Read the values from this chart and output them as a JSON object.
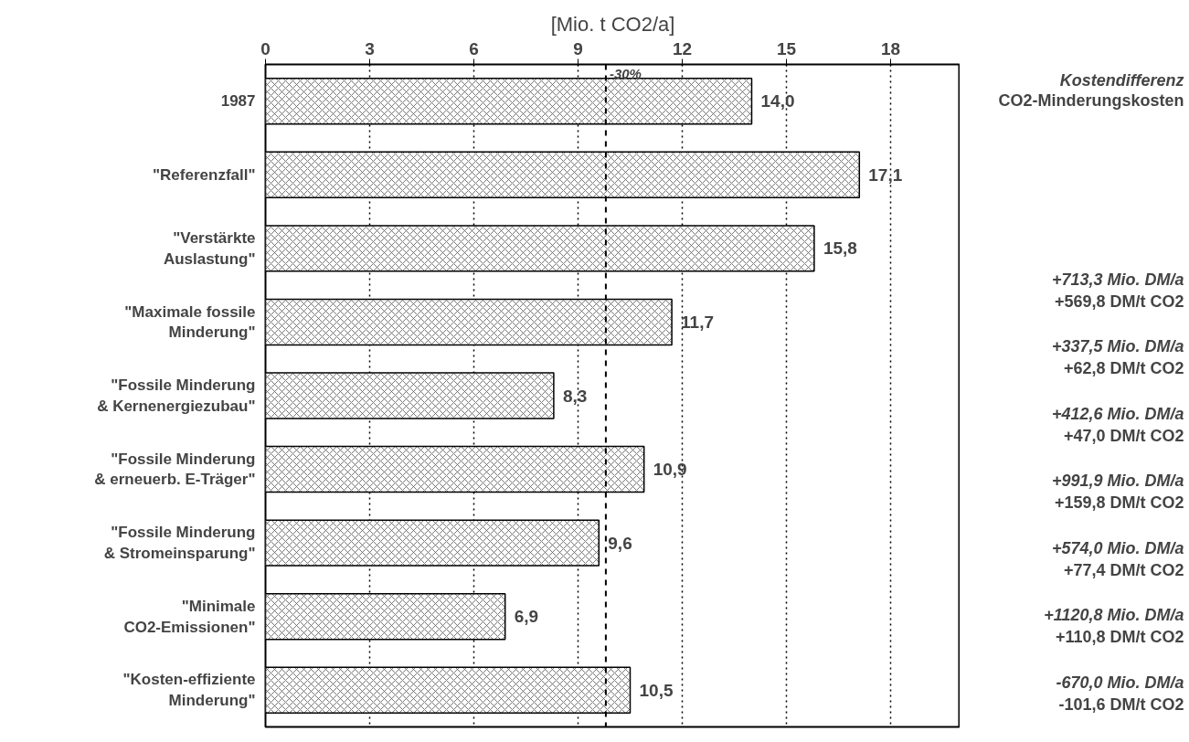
{
  "chart_data": {
    "type": "bar",
    "orientation": "horizontal",
    "xlabel": "[Mio. t CO2/a]",
    "categories": [
      "1987",
      "\"Referenzfall\"",
      "\"Verstärkte\nAuslastung\"",
      "\"Maximale fossile\nMinderung\"",
      "\"Fossile Minderung\n& Kernenergiezubau\"",
      "\"Fossile Minderung\n& erneuerb. E-Träger\"",
      "\"Fossile Minderung\n& Stromeinsparung\"",
      "\"Minimale\nCO2-Emissionen\"",
      "\"Kosten-effiziente\nMinderung\""
    ],
    "values": [
      14.0,
      17.1,
      15.8,
      11.7,
      8.3,
      10.9,
      9.6,
      6.9,
      10.5
    ],
    "value_labels": [
      "14,0",
      "17,1",
      "15,8",
      "11,7",
      "8,3",
      "10,9",
      "9,6",
      "6,9",
      "10,5"
    ],
    "color": "#ffffff",
    "xlim": [
      0,
      20
    ],
    "xticks": [
      0,
      3,
      6,
      9,
      12,
      15,
      18
    ],
    "grid": "x",
    "ref_lines": [
      {
        "axis": "x",
        "value": 9.8,
        "line_style": "dashed",
        "color": "#000000"
      }
    ],
    "annotations": [
      "-30%",
      "Kostendifferenz",
      "CO2-Minderungskosten",
      "+713,3 Mio. DM/a",
      "+569,8 DM/t CO2",
      "+337,5 Mio. DM/a",
      "+62,8 DM/t CO2",
      "+412,6 Mio. DM/a",
      "+47,0 DM/t CO2",
      "+991,9 Mio. DM/a",
      "+159,8 DM/t CO2",
      "+574,0 Mio. DM/a",
      "+77,4 DM/t CO2",
      "+1120,8 Mio. DM/a",
      "+110,8 DM/t CO2",
      "-670,0 Mio. DM/a",
      "-101,6 DM/t CO2"
    ]
  }
}
